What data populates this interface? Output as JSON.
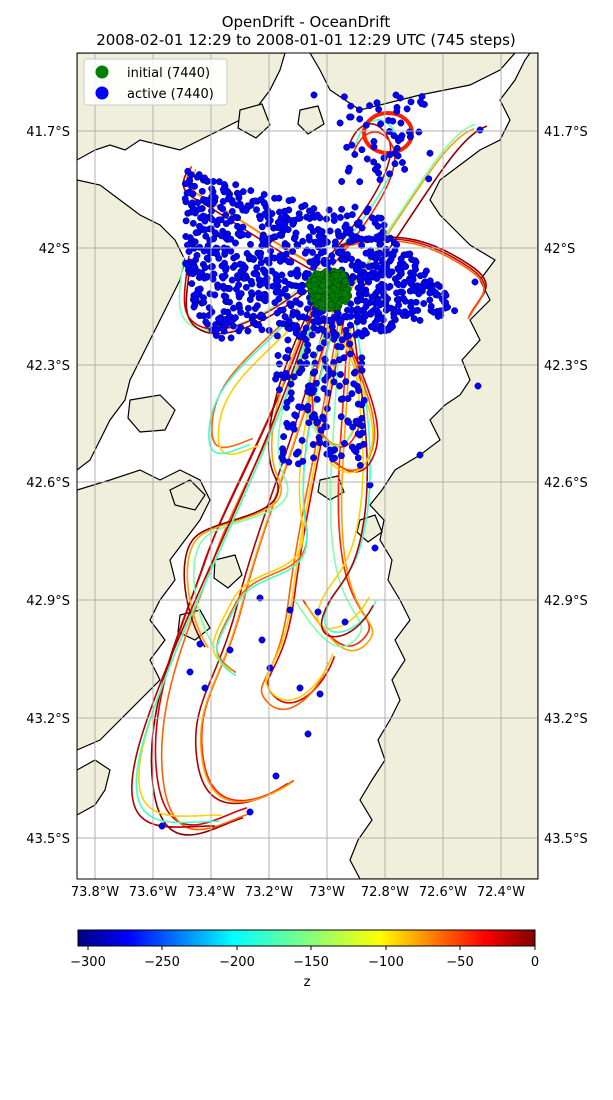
{
  "title": {
    "line1": "OpenDrift - OceanDrift",
    "line2": "2008-02-01 12:29 to 2008-01-01 12:29 UTC (745 steps)"
  },
  "legend": {
    "initial": "initial (7440)",
    "active": "active (7440)",
    "initial_color": "#008000",
    "active_color": "#0000ff"
  },
  "map": {
    "lon_ticks": [
      "73.8°W",
      "73.6°W",
      "73.4°W",
      "73.2°W",
      "73°W",
      "72.8°W",
      "72.6°W",
      "72.4°W"
    ],
    "lat_ticks": [
      "41.7°S",
      "42°S",
      "42.3°S",
      "42.6°S",
      "42.9°S",
      "43.2°S",
      "43.5°S"
    ],
    "land_color": "#efefdb",
    "ocean_color": "#ffffff",
    "grid": true
  },
  "colorbar": {
    "label": "z",
    "cmap": "jet",
    "ticks": [
      "−300",
      "−250",
      "−200",
      "−150",
      "−100",
      "−50",
      "0"
    ]
  }
}
